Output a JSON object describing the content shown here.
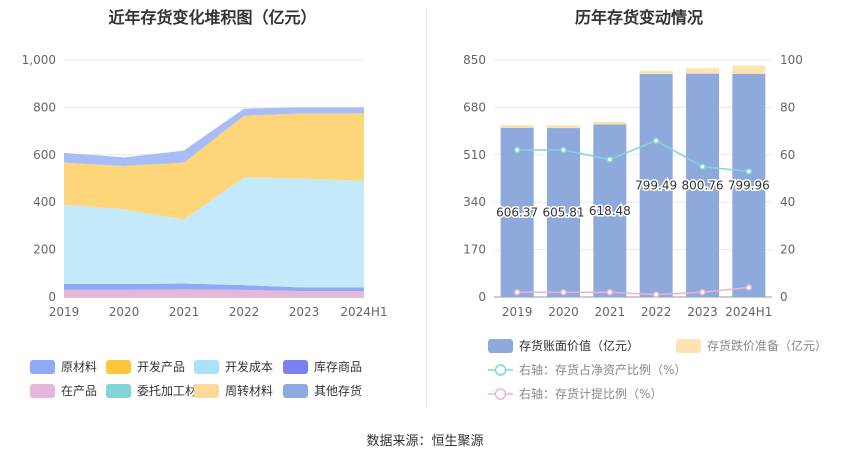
{
  "footer": "数据来源：恒生聚源",
  "chart_data": [
    {
      "type": "area",
      "stacked": true,
      "title": "近年存货变化堆积图（亿元）",
      "categories": [
        "2019",
        "2020",
        "2021",
        "2022",
        "2023",
        "2024H1"
      ],
      "ylim": [
        0,
        1000
      ],
      "yticks": [
        "0",
        "200",
        "400",
        "600",
        "800",
        "1,000"
      ],
      "grid": true,
      "legend_position": "bottom",
      "series": [
        {
          "name": "在产品",
          "color": "#e6b7da",
          "values": [
            30,
            30,
            32,
            30,
            25,
            25
          ]
        },
        {
          "name": "原材料",
          "color": "#8eaaf5",
          "values": [
            25,
            25,
            25,
            20,
            15,
            15
          ]
        },
        {
          "name": "开发成本",
          "color": "#c4e9fb",
          "values": [
            335,
            315,
            270,
            455,
            460,
            450
          ]
        },
        {
          "name": "开发产品",
          "color": "#ffd57a",
          "values": [
            177,
            183,
            240,
            260,
            275,
            285
          ]
        },
        {
          "name": "其他存货",
          "color": "#a8bdf7",
          "values": [
            41,
            36,
            51,
            30,
            25,
            25
          ]
        }
      ],
      "legend": [
        {
          "name": "原材料",
          "color": "#8eaaf5"
        },
        {
          "name": "开发产品",
          "color": "#ffc53d"
        },
        {
          "name": "开发成本",
          "color": "#a8e2fb"
        },
        {
          "name": "库存商品",
          "color": "#7b80f0"
        },
        {
          "name": "在产品",
          "color": "#e6b7da"
        },
        {
          "name": "委托加工材料",
          "color": "#82d4d8"
        },
        {
          "name": "周转材料",
          "color": "#fdd89b"
        },
        {
          "name": "其他存货",
          "color": "#8eaadf"
        }
      ]
    },
    {
      "type": "bar",
      "title": "历年存货变动情况",
      "categories": [
        "2019",
        "2020",
        "2021",
        "2022",
        "2023",
        "2024H1"
      ],
      "ylim": [
        0,
        850
      ],
      "yticks": [
        "0",
        "170",
        "340",
        "510",
        "680",
        "850"
      ],
      "y2lim": [
        0,
        100
      ],
      "y2ticks": [
        "0",
        "20",
        "40",
        "60",
        "80",
        "100"
      ],
      "grid": true,
      "legend_position": "bottom",
      "series": [
        {
          "name": "存货账面价值（亿元）",
          "kind": "bar",
          "color": "#8eaadc",
          "values": [
            606.37,
            605.81,
            618.48,
            799.49,
            800.76,
            799.96
          ],
          "labels": [
            "606.37",
            "605.81",
            "618.48",
            "799.49",
            "800.76",
            "799.96"
          ]
        },
        {
          "name": "存货跌价准备（亿元）",
          "kind": "bar",
          "color": "#fde3b4",
          "values": [
            10,
            10,
            10,
            12,
            20,
            30
          ]
        },
        {
          "name": "右轴：存货占净资产比例（%）",
          "kind": "line",
          "axis": "right",
          "color": "#7fd6d3",
          "values": [
            62,
            62,
            58,
            66,
            55,
            53
          ]
        },
        {
          "name": "右轴：存货计提比例（%）",
          "kind": "line",
          "axis": "right",
          "color": "#e8b4d6",
          "values": [
            2,
            2,
            2,
            1,
            2,
            4
          ]
        }
      ]
    }
  ]
}
